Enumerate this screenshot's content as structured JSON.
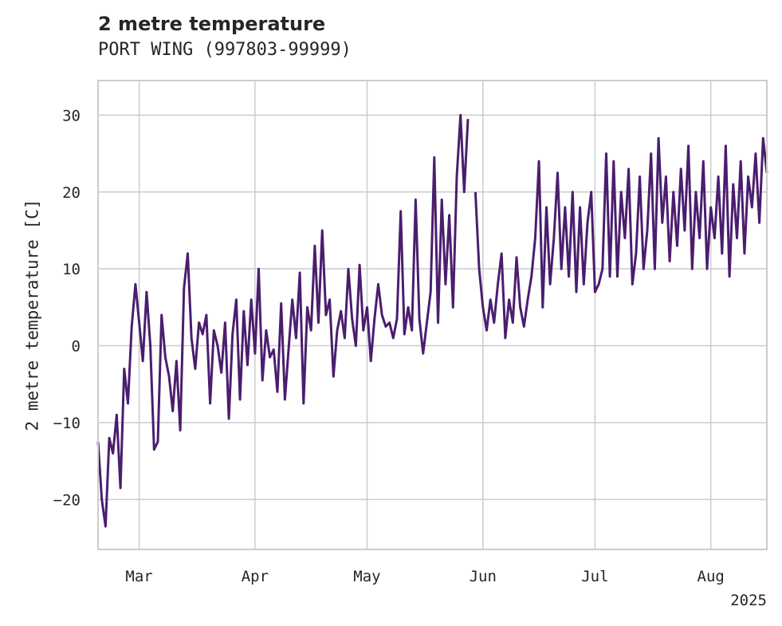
{
  "chart_data": {
    "type": "line",
    "title": "2 metre temperature",
    "subtitle": "PORT WING (997803-99999)",
    "ylabel": "2 metre temperature [C]",
    "xlabel": "",
    "year_label": "2025",
    "x_range": [
      "2025-02-18",
      "2025-08-16"
    ],
    "ylim": [
      -26.5,
      34.5
    ],
    "y_ticks": [
      -20,
      -10,
      0,
      10,
      20,
      30
    ],
    "x_ticks": [
      {
        "date": "2025-03-01",
        "label": "Mar"
      },
      {
        "date": "2025-04-01",
        "label": "Apr"
      },
      {
        "date": "2025-05-01",
        "label": "May"
      },
      {
        "date": "2025-06-01",
        "label": "Jun"
      },
      {
        "date": "2025-07-01",
        "label": "Jul"
      },
      {
        "date": "2025-08-01",
        "label": "Aug"
      }
    ],
    "grid": true,
    "legend": "none",
    "line_color": "#4b1d6e",
    "series": [
      {
        "name": "",
        "points": [
          [
            "2025-02-18",
            -12.5
          ],
          [
            "2025-02-19",
            -20
          ],
          [
            "2025-02-20",
            -23.5
          ],
          [
            "2025-02-21",
            -12
          ],
          [
            "2025-02-22",
            -14
          ],
          [
            "2025-02-23",
            -9
          ],
          [
            "2025-02-24",
            -18.5
          ],
          [
            "2025-02-25",
            -3
          ],
          [
            "2025-02-26",
            -7.5
          ],
          [
            "2025-02-27",
            2.5
          ],
          [
            "2025-02-28",
            8
          ],
          [
            "2025-03-01",
            3
          ],
          [
            "2025-03-02",
            -2
          ],
          [
            "2025-03-03",
            7
          ],
          [
            "2025-03-04",
            0
          ],
          [
            "2025-03-05",
            -13.5
          ],
          [
            "2025-03-06",
            -12.5
          ],
          [
            "2025-03-07",
            4
          ],
          [
            "2025-03-08",
            -1.5
          ],
          [
            "2025-03-09",
            -4
          ],
          [
            "2025-03-10",
            -8.5
          ],
          [
            "2025-03-11",
            -2
          ],
          [
            "2025-03-12",
            -11
          ],
          [
            "2025-03-13",
            7.5
          ],
          [
            "2025-03-14",
            12
          ],
          [
            "2025-03-15",
            1
          ],
          [
            "2025-03-16",
            -3
          ],
          [
            "2025-03-17",
            3
          ],
          [
            "2025-03-18",
            1.5
          ],
          [
            "2025-03-19",
            4
          ],
          [
            "2025-03-20",
            -7.5
          ],
          [
            "2025-03-21",
            2
          ],
          [
            "2025-03-22",
            0
          ],
          [
            "2025-03-23",
            -3.5
          ],
          [
            "2025-03-24",
            3
          ],
          [
            "2025-03-25",
            -9.5
          ],
          [
            "2025-03-26",
            1.5
          ],
          [
            "2025-03-27",
            6
          ],
          [
            "2025-03-28",
            -7
          ],
          [
            "2025-03-29",
            4.5
          ],
          [
            "2025-03-30",
            -2.5
          ],
          [
            "2025-03-31",
            6
          ],
          [
            "2025-04-01",
            -1
          ],
          [
            "2025-04-02",
            10
          ],
          [
            "2025-04-03",
            -4.5
          ],
          [
            "2025-04-04",
            2
          ],
          [
            "2025-04-05",
            -1.5
          ],
          [
            "2025-04-06",
            -0.5
          ],
          [
            "2025-04-07",
            -6
          ],
          [
            "2025-04-08",
            5.5
          ],
          [
            "2025-04-09",
            -7
          ],
          [
            "2025-04-10",
            -0.5
          ],
          [
            "2025-04-11",
            6
          ],
          [
            "2025-04-12",
            1
          ],
          [
            "2025-04-13",
            9.5
          ],
          [
            "2025-04-14",
            -7.5
          ],
          [
            "2025-04-15",
            5
          ],
          [
            "2025-04-16",
            2
          ],
          [
            "2025-04-17",
            13
          ],
          [
            "2025-04-18",
            3
          ],
          [
            "2025-04-19",
            15
          ],
          [
            "2025-04-20",
            4
          ],
          [
            "2025-04-21",
            6
          ],
          [
            "2025-04-22",
            -4
          ],
          [
            "2025-04-23",
            2
          ],
          [
            "2025-04-24",
            4.5
          ],
          [
            "2025-04-25",
            1
          ],
          [
            "2025-04-26",
            10
          ],
          [
            "2025-04-27",
            3.5
          ],
          [
            "2025-04-28",
            0
          ],
          [
            "2025-04-29",
            10.5
          ],
          [
            "2025-04-30",
            2
          ],
          [
            "2025-05-01",
            5
          ],
          [
            "2025-05-02",
            -2
          ],
          [
            "2025-05-03",
            3.5
          ],
          [
            "2025-05-04",
            8
          ],
          [
            "2025-05-05",
            4
          ],
          [
            "2025-05-06",
            2.5
          ],
          [
            "2025-05-07",
            3
          ],
          [
            "2025-05-08",
            1
          ],
          [
            "2025-05-09",
            3.5
          ],
          [
            "2025-05-10",
            17.5
          ],
          [
            "2025-05-11",
            1.5
          ],
          [
            "2025-05-12",
            5
          ],
          [
            "2025-05-13",
            2
          ],
          [
            "2025-05-14",
            19
          ],
          [
            "2025-05-15",
            3.5
          ],
          [
            "2025-05-16",
            -1
          ],
          [
            "2025-05-17",
            3
          ],
          [
            "2025-05-18",
            7
          ],
          [
            "2025-05-19",
            24.5
          ],
          [
            "2025-05-20",
            3
          ],
          [
            "2025-05-21",
            19
          ],
          [
            "2025-05-22",
            8
          ],
          [
            "2025-05-23",
            17
          ],
          [
            "2025-05-24",
            5
          ],
          [
            "2025-05-25",
            22
          ],
          [
            "2025-05-26",
            30
          ],
          [
            "2025-05-27",
            20
          ],
          [
            "2025-05-28",
            29.5
          ],
          [
            "2025-05-30",
            20
          ],
          [
            "2025-05-31",
            10
          ],
          [
            "2025-06-01",
            5
          ],
          [
            "2025-06-02",
            2
          ],
          [
            "2025-06-03",
            6
          ],
          [
            "2025-06-04",
            3
          ],
          [
            "2025-06-05",
            8
          ],
          [
            "2025-06-06",
            12
          ],
          [
            "2025-06-07",
            1
          ],
          [
            "2025-06-08",
            6
          ],
          [
            "2025-06-09",
            3
          ],
          [
            "2025-06-10",
            11.5
          ],
          [
            "2025-06-11",
            5
          ],
          [
            "2025-06-12",
            2.5
          ],
          [
            "2025-06-13",
            6
          ],
          [
            "2025-06-14",
            9
          ],
          [
            "2025-06-15",
            14
          ],
          [
            "2025-06-16",
            24
          ],
          [
            "2025-06-17",
            5
          ],
          [
            "2025-06-18",
            18
          ],
          [
            "2025-06-19",
            8
          ],
          [
            "2025-06-20",
            14
          ],
          [
            "2025-06-21",
            22.5
          ],
          [
            "2025-06-22",
            10
          ],
          [
            "2025-06-23",
            18
          ],
          [
            "2025-06-24",
            9
          ],
          [
            "2025-06-25",
            20
          ],
          [
            "2025-06-26",
            7
          ],
          [
            "2025-06-27",
            18
          ],
          [
            "2025-06-28",
            8
          ],
          [
            "2025-06-29",
            16
          ],
          [
            "2025-06-30",
            20
          ],
          [
            "2025-07-01",
            7
          ],
          [
            "2025-07-02",
            8
          ],
          [
            "2025-07-03",
            10
          ],
          [
            "2025-07-04",
            25
          ],
          [
            "2025-07-05",
            9
          ],
          [
            "2025-07-06",
            24
          ],
          [
            "2025-07-07",
            9
          ],
          [
            "2025-07-08",
            20
          ],
          [
            "2025-07-09",
            14
          ],
          [
            "2025-07-10",
            23
          ],
          [
            "2025-07-11",
            8
          ],
          [
            "2025-07-12",
            12
          ],
          [
            "2025-07-13",
            22
          ],
          [
            "2025-07-14",
            10
          ],
          [
            "2025-07-15",
            15
          ],
          [
            "2025-07-16",
            25
          ],
          [
            "2025-07-17",
            10
          ],
          [
            "2025-07-18",
            27
          ],
          [
            "2025-07-19",
            16
          ],
          [
            "2025-07-20",
            22
          ],
          [
            "2025-07-21",
            11
          ],
          [
            "2025-07-22",
            20
          ],
          [
            "2025-07-23",
            13
          ],
          [
            "2025-07-24",
            23
          ],
          [
            "2025-07-25",
            15
          ],
          [
            "2025-07-26",
            26
          ],
          [
            "2025-07-27",
            10
          ],
          [
            "2025-07-28",
            20
          ],
          [
            "2025-07-29",
            14
          ],
          [
            "2025-07-30",
            24
          ],
          [
            "2025-07-31",
            10
          ],
          [
            "2025-08-01",
            18
          ],
          [
            "2025-08-02",
            14
          ],
          [
            "2025-08-03",
            22
          ],
          [
            "2025-08-04",
            12
          ],
          [
            "2025-08-05",
            26
          ],
          [
            "2025-08-06",
            9
          ],
          [
            "2025-08-07",
            21
          ],
          [
            "2025-08-08",
            14
          ],
          [
            "2025-08-09",
            24
          ],
          [
            "2025-08-10",
            12
          ],
          [
            "2025-08-11",
            22
          ],
          [
            "2025-08-12",
            18
          ],
          [
            "2025-08-13",
            25
          ],
          [
            "2025-08-14",
            16
          ],
          [
            "2025-08-15",
            27
          ],
          [
            "2025-08-16",
            22.5
          ]
        ]
      }
    ]
  }
}
